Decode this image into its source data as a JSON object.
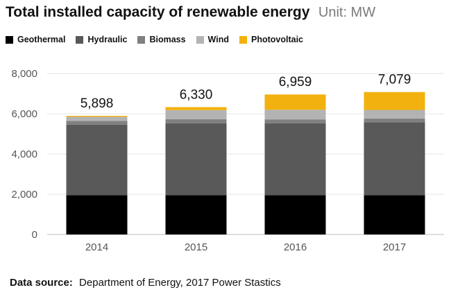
{
  "chart_data": {
    "type": "bar",
    "stacked": true,
    "title": "Total installed capacity of renewable energy",
    "unit_label": "Unit: MW",
    "categories": [
      "2014",
      "2015",
      "2016",
      "2017"
    ],
    "series": [
      {
        "name": "Geothermal",
        "color": "#000000",
        "values": [
          1950,
          1950,
          1950,
          1950
        ]
      },
      {
        "name": "Hydraulic",
        "color": "#595959",
        "values": [
          3500,
          3580,
          3580,
          3630
        ]
      },
      {
        "name": "Biomass",
        "color": "#808080",
        "values": [
          190,
          200,
          190,
          180
        ]
      },
      {
        "name": "Wind",
        "color": "#b3b3b3",
        "values": [
          210,
          450,
          480,
          430
        ]
      },
      {
        "name": "Photovoltaic",
        "color": "#f2b10e",
        "values": [
          48,
          150,
          759,
          889
        ]
      }
    ],
    "totals": [
      "5,898",
      "6,330",
      "6,959",
      "7,079"
    ],
    "y_ticks": [
      "0",
      "2,000",
      "4,000",
      "6,000",
      "8,000"
    ],
    "ylim": [
      0,
      8000
    ],
    "grid": true,
    "legend_position": "top-left"
  },
  "source": {
    "label": "Data source:",
    "text": "Department of Energy, 2017 Power Stastics"
  }
}
